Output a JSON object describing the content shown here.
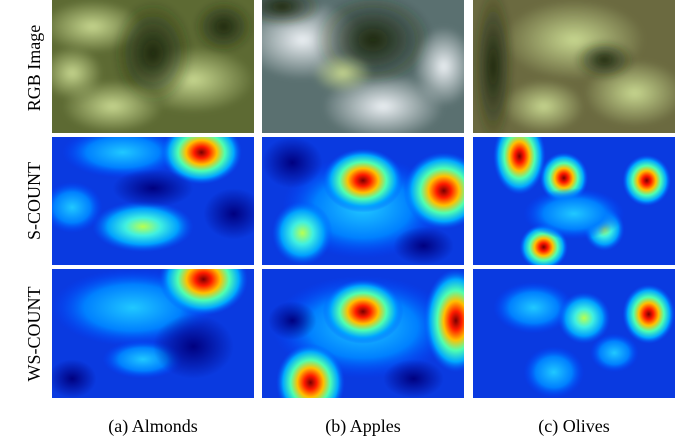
{
  "figure": {
    "row_labels": [
      "RGB Image",
      "S-COUNT",
      "WS-COUNT"
    ],
    "captions": [
      "(a) Almonds",
      "(b) Apples",
      "(c) Olives"
    ]
  }
}
